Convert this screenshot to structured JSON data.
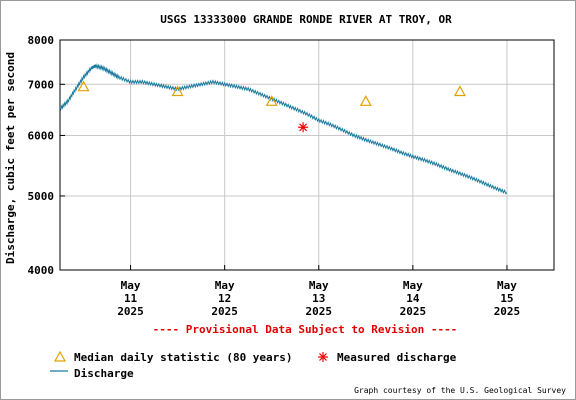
{
  "chart_data": {
    "type": "line",
    "title": "USGS 13333000 GRANDE RONDE RIVER AT TROY, OR",
    "ylabel": "Discharge, cubic feet per second",
    "xlabel": "",
    "y_scale": "log",
    "ylim": [
      4000,
      8000
    ],
    "y_ticks": [
      4000,
      5000,
      6000,
      7000,
      8000
    ],
    "xlim": [
      "2025-05-10 06:00",
      "2025-05-15 12:00"
    ],
    "x_ticks": [
      {
        "date": "2025-05-11 00:00",
        "month": "May",
        "day": "11",
        "year": "2025"
      },
      {
        "date": "2025-05-12 00:00",
        "month": "May",
        "day": "12",
        "year": "2025"
      },
      {
        "date": "2025-05-13 00:00",
        "month": "May",
        "day": "13",
        "year": "2025"
      },
      {
        "date": "2025-05-14 00:00",
        "month": "May",
        "day": "14",
        "year": "2025"
      },
      {
        "date": "2025-05-15 00:00",
        "month": "May",
        "day": "15",
        "year": "2025"
      }
    ],
    "grid": true,
    "series": [
      {
        "name": "Discharge",
        "color": "#1a7a9e",
        "kind": "line",
        "points": [
          [
            "2025-05-10 06:00",
            6500
          ],
          [
            "2025-05-10 08:00",
            6650
          ],
          [
            "2025-05-10 10:00",
            6900
          ],
          [
            "2025-05-10 12:00",
            7150
          ],
          [
            "2025-05-10 14:00",
            7350
          ],
          [
            "2025-05-10 15:00",
            7400
          ],
          [
            "2025-05-10 17:00",
            7350
          ],
          [
            "2025-05-10 19:00",
            7250
          ],
          [
            "2025-05-10 21:00",
            7150
          ],
          [
            "2025-05-11 00:00",
            7050
          ],
          [
            "2025-05-11 03:00",
            7050
          ],
          [
            "2025-05-11 06:00",
            7000
          ],
          [
            "2025-05-11 09:00",
            6950
          ],
          [
            "2025-05-11 12:00",
            6900
          ],
          [
            "2025-05-11 15:00",
            6950
          ],
          [
            "2025-05-11 18:00",
            7000
          ],
          [
            "2025-05-11 21:00",
            7050
          ],
          [
            "2025-05-12 00:00",
            7000
          ],
          [
            "2025-05-12 03:00",
            6950
          ],
          [
            "2025-05-12 06:00",
            6900
          ],
          [
            "2025-05-12 09:00",
            6800
          ],
          [
            "2025-05-12 12:00",
            6700
          ],
          [
            "2025-05-12 15:00",
            6600
          ],
          [
            "2025-05-12 18:00",
            6500
          ],
          [
            "2025-05-12 21:00",
            6400
          ],
          [
            "2025-05-13 00:00",
            6280
          ],
          [
            "2025-05-13 03:00",
            6200
          ],
          [
            "2025-05-13 06:00",
            6100
          ],
          [
            "2025-05-13 09:00",
            6000
          ],
          [
            "2025-05-13 12:00",
            5920
          ],
          [
            "2025-05-13 15:00",
            5850
          ],
          [
            "2025-05-13 18:00",
            5780
          ],
          [
            "2025-05-13 21:00",
            5700
          ],
          [
            "2025-05-14 00:00",
            5630
          ],
          [
            "2025-05-14 03:00",
            5570
          ],
          [
            "2025-05-14 06:00",
            5500
          ],
          [
            "2025-05-14 09:00",
            5420
          ],
          [
            "2025-05-14 12:00",
            5350
          ],
          [
            "2025-05-14 15:00",
            5280
          ],
          [
            "2025-05-14 18:00",
            5200
          ],
          [
            "2025-05-14 21:00",
            5120
          ],
          [
            "2025-05-15 00:00",
            5050
          ]
        ]
      },
      {
        "name": "Median daily statistic (80 years)",
        "color": "#e3a000",
        "kind": "triangle",
        "points": [
          [
            "2025-05-10 12:00",
            6950
          ],
          [
            "2025-05-11 12:00",
            6850
          ],
          [
            "2025-05-12 12:00",
            6650
          ],
          [
            "2025-05-13 12:00",
            6650
          ],
          [
            "2025-05-14 12:00",
            6850
          ]
        ]
      },
      {
        "name": "Measured discharge",
        "color": "#ff0000",
        "kind": "asterisk",
        "points": [
          [
            "2025-05-12 20:00",
            6150
          ]
        ]
      }
    ],
    "annotations": [
      "---- Provisional Data Subject to Revision ----"
    ],
    "credit": "Graph courtesy of the U.S. Geological Survey"
  }
}
